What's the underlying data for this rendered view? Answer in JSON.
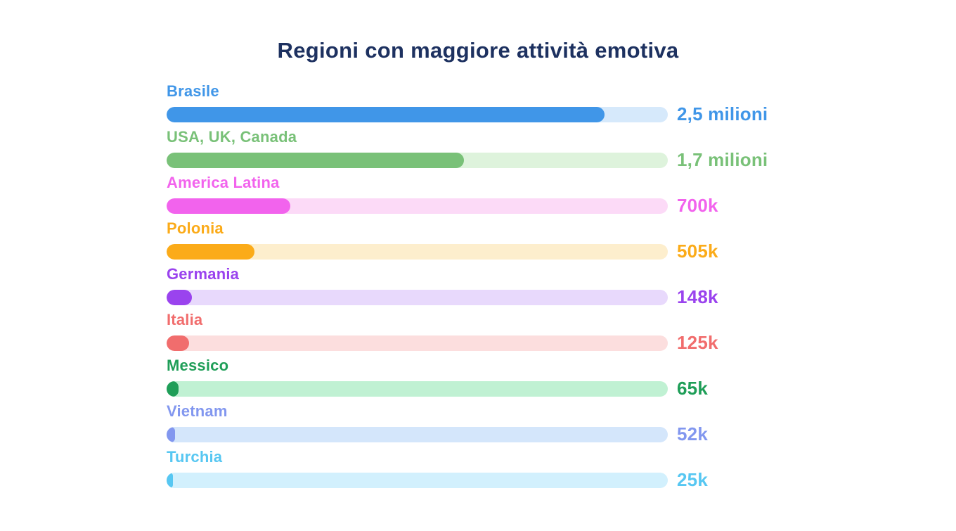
{
  "title": "Regioni con maggiore attività emotiva",
  "title_color": "#1d3160",
  "chart_data": {
    "type": "bar",
    "orientation": "horizontal",
    "title": "Regioni con maggiore attività emotiva",
    "grid": false,
    "legend": false,
    "categories": [
      "Brasile",
      "USA, UK, Canada",
      "America Latina",
      "Polonia",
      "Germania",
      "Italia",
      "Messico",
      "Vietnam",
      "Turchia"
    ],
    "values": [
      2500000,
      1700000,
      700000,
      505000,
      148000,
      125000,
      65000,
      52000,
      25000
    ],
    "value_labels": [
      "2,5 milioni",
      "1,7 milioni",
      "700k",
      "505k",
      "148k",
      "125k",
      "65k",
      "52k",
      "25k"
    ],
    "items": [
      {
        "region": "Brasile",
        "value": 2500000,
        "value_label": "2,5 milioni",
        "fill_percent": 87.4,
        "color": "#4096e8",
        "track_color": "#d6e9fb"
      },
      {
        "region": "USA, UK, Canada",
        "value": 1700000,
        "value_label": "1,7 milioni",
        "fill_percent": 59.3,
        "color": "#79c178",
        "track_color": "#def3dc"
      },
      {
        "region": "America Latina",
        "value": 700000,
        "value_label": "700k",
        "fill_percent": 24.7,
        "color": "#f263ed",
        "track_color": "#fcdaf7"
      },
      {
        "region": "Polonia",
        "value": 505000,
        "value_label": "505k",
        "fill_percent": 17.5,
        "color": "#fbab19",
        "track_color": "#fdeecd"
      },
      {
        "region": "Germania",
        "value": 148000,
        "value_label": "148k",
        "fill_percent": 5.0,
        "color": "#9a43ee",
        "track_color": "#e8d9fc"
      },
      {
        "region": "Italia",
        "value": 125000,
        "value_label": "125k",
        "fill_percent": 4.5,
        "color": "#f16d6d",
        "track_color": "#fcdede"
      },
      {
        "region": "Messico",
        "value": 65000,
        "value_label": "65k",
        "fill_percent": 2.4,
        "color": "#1f9e58",
        "track_color": "#c0f1d3"
      },
      {
        "region": "Vietnam",
        "value": 52000,
        "value_label": "52k",
        "fill_percent": 1.7,
        "color": "#8297ef",
        "track_color": "#d4e6fb"
      },
      {
        "region": "Turchia",
        "value": 25000,
        "value_label": "25k",
        "fill_percent": 1.2,
        "color": "#57c7f2",
        "track_color": "#d2f0fd"
      }
    ]
  }
}
